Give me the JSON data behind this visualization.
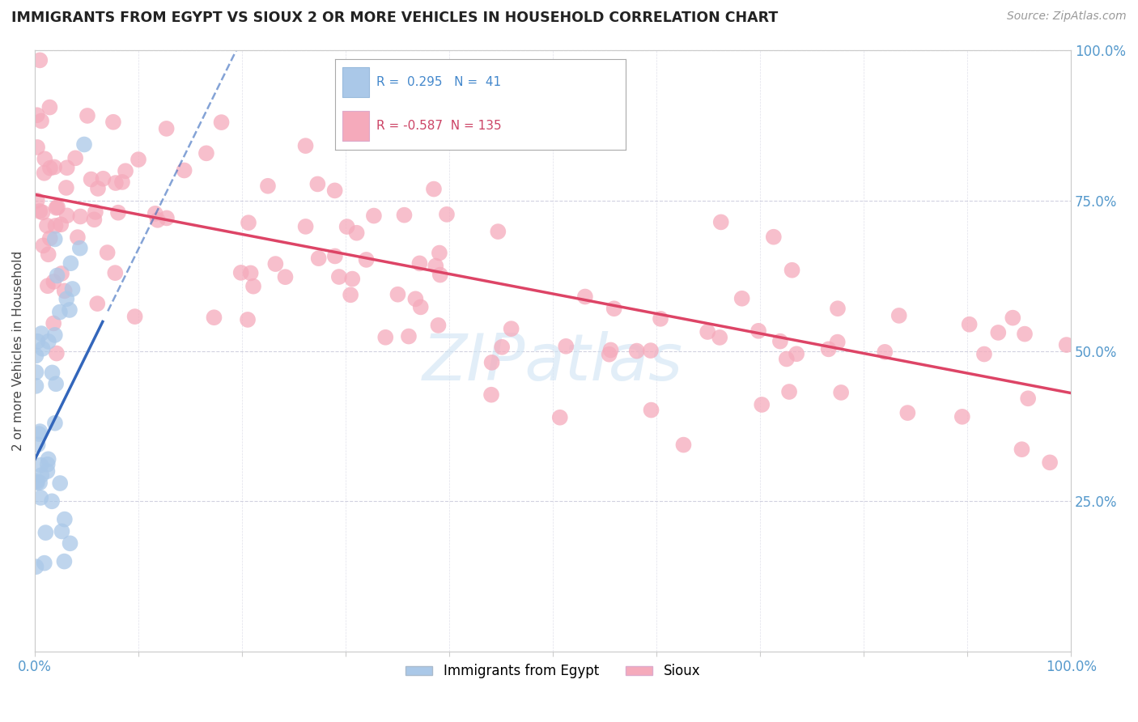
{
  "title": "IMMIGRANTS FROM EGYPT VS SIOUX 2 OR MORE VEHICLES IN HOUSEHOLD CORRELATION CHART",
  "source": "Source: ZipAtlas.com",
  "ylabel": "2 or more Vehicles in Household",
  "blue_R": 0.295,
  "blue_N": 41,
  "pink_R": -0.587,
  "pink_N": 135,
  "blue_color": "#aac8e8",
  "pink_color": "#f5aabb",
  "blue_edge": "#88aacc",
  "pink_edge": "#e088aa",
  "blue_line_color": "#3366bb",
  "pink_line_color": "#dd4466",
  "watermark": "ZIPatlas",
  "legend_label_blue": "Immigrants from Egypt",
  "legend_label_pink": "Sioux",
  "blue_line_intercept": 0.32,
  "blue_line_slope": 3.5,
  "pink_line_intercept": 0.76,
  "pink_line_slope": -0.33,
  "grid_color": "#ccccdd",
  "title_color": "#222222",
  "source_color": "#999999",
  "tick_color": "#5599cc",
  "axis_label_color": "#444444"
}
